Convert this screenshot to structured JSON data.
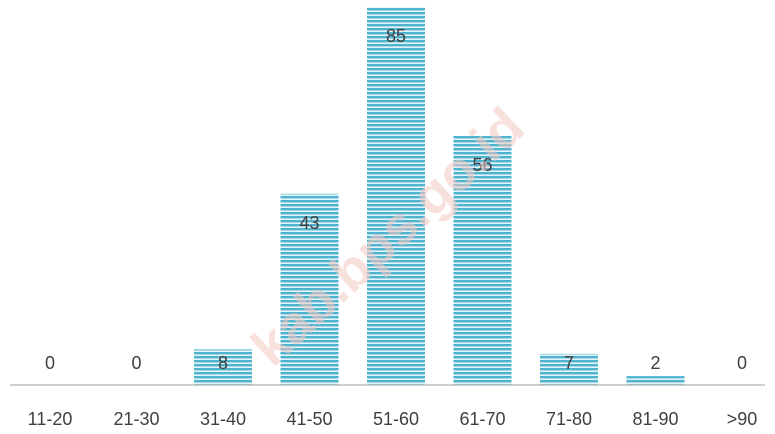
{
  "watermark": "kab.bps.go.id",
  "colors": {
    "bar_fill": "#4fb3cf",
    "bar_stripe": "#ffffff",
    "axis": "#bfbfbf",
    "text": "#404040"
  },
  "chart_data": {
    "type": "bar",
    "categories": [
      "11-20",
      "21-30",
      "31-40",
      "41-50",
      "51-60",
      "61-70",
      "71-80",
      "81-90",
      ">90"
    ],
    "values": [
      0,
      0,
      8,
      43,
      85,
      56,
      7,
      2,
      0
    ],
    "data_labels": [
      "0",
      "0",
      "8",
      "43",
      "85",
      "56",
      "7",
      "2",
      "0"
    ],
    "title": "",
    "xlabel": "",
    "ylabel": "",
    "ylim": [
      0,
      85
    ],
    "grid": false,
    "legend": "none"
  }
}
